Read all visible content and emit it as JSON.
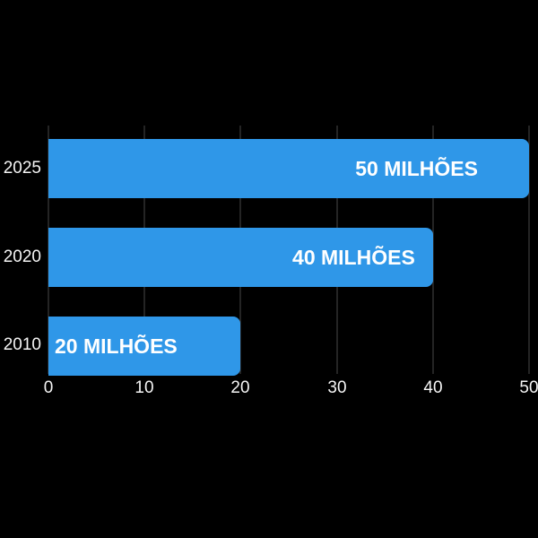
{
  "chart_data": {
    "type": "bar",
    "orientation": "horizontal",
    "title": "",
    "categories": [
      "2025",
      "2020",
      "2010"
    ],
    "values": [
      50,
      40,
      20
    ],
    "bar_labels": [
      "50 MILHÕES",
      "40 MILHÕES",
      "20 MILHÕES"
    ],
    "x_ticks": [
      "0",
      "10",
      "20",
      "30",
      "40",
      "50"
    ],
    "xlim": [
      0,
      50
    ],
    "grid": "vertical-gridlines-on",
    "legend": "none",
    "colors": {
      "background": "#000000",
      "bar": "#2f97e8",
      "bar_label_text": "#ffffff",
      "axis_text": "#f5f5f5",
      "gridline": "#474747"
    }
  }
}
